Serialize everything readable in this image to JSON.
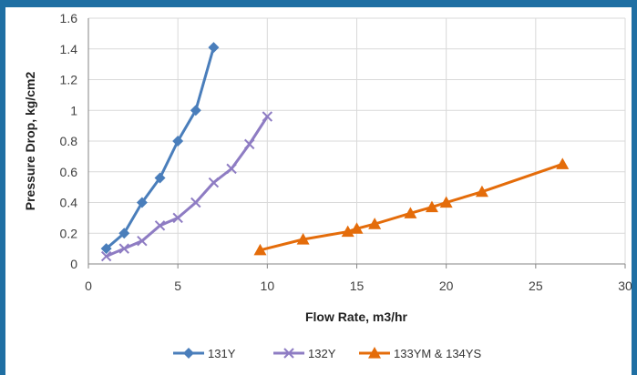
{
  "chart_data": {
    "type": "line",
    "title": "",
    "xlabel": "Flow Rate, m3/hr",
    "ylabel": "Pressure Drop, kg/cm2",
    "xlim": [
      0,
      30
    ],
    "ylim": [
      0,
      1.6
    ],
    "xticks": [
      "0",
      "5",
      "10",
      "15",
      "20",
      "25",
      "30"
    ],
    "yticks": [
      "0",
      "0.2",
      "0.4",
      "0.6",
      "0.8",
      "1",
      "1.2",
      "1.4",
      "1.6"
    ],
    "grid": true,
    "legend_position": "bottom",
    "series": [
      {
        "name": "131Y",
        "color": "#4a7ebb",
        "marker": "diamond",
        "x": [
          1,
          2,
          3,
          4,
          5,
          6,
          7
        ],
        "y": [
          0.1,
          0.2,
          0.4,
          0.56,
          0.8,
          1.0,
          1.41
        ]
      },
      {
        "name": "132Y",
        "color": "#8e7cc3",
        "marker": "x",
        "x": [
          1,
          2,
          3,
          4,
          5,
          6,
          7,
          8,
          9,
          10
        ],
        "y": [
          0.05,
          0.1,
          0.15,
          0.25,
          0.3,
          0.4,
          0.53,
          0.62,
          0.78,
          0.96
        ]
      },
      {
        "name": "133YM & 134YS",
        "color": "#e46c0a",
        "marker": "triangle",
        "x": [
          9.6,
          12,
          14.5,
          15,
          16,
          18,
          19.2,
          20,
          22,
          26.5
        ],
        "y": [
          0.09,
          0.16,
          0.21,
          0.23,
          0.26,
          0.33,
          0.37,
          0.4,
          0.47,
          0.65
        ]
      }
    ]
  }
}
